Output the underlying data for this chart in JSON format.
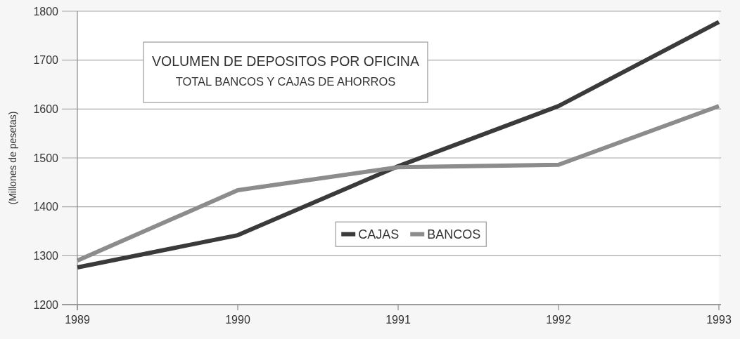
{
  "chart_data": {
    "type": "line",
    "title": "VOLUMEN DE DEPOSITOS POR OFICINA",
    "subtitle": "TOTAL BANCOS Y CAJAS DE AHORROS",
    "ylabel": "(Millones de pesetas)",
    "x": [
      1989,
      1990,
      1991,
      1992,
      1993
    ],
    "xlim": [
      1989,
      1993
    ],
    "xticks": [
      1989,
      1990,
      1991,
      1992,
      1993
    ],
    "ylim": [
      1200,
      1800
    ],
    "yticks": [
      1200,
      1300,
      1400,
      1500,
      1600,
      1700,
      1800
    ],
    "series": [
      {
        "name": "CAJAS",
        "color": "#3a3a3a",
        "values": [
          1276,
          1342,
          1483,
          1606,
          1778
        ]
      },
      {
        "name": "BANCOS",
        "color": "#8c8c8c",
        "values": [
          1290,
          1434,
          1481,
          1486,
          1606
        ]
      }
    ],
    "grid": "y",
    "legend": "center"
  }
}
